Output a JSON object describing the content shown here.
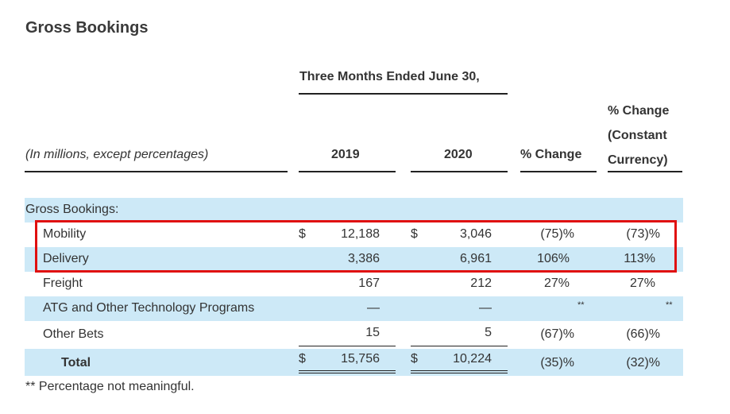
{
  "title": "Gross Bookings",
  "period_header": "Three Months Ended June 30,",
  "units_label": "(In millions, except percentages)",
  "columns": {
    "y2019": "2019",
    "y2020": "2020",
    "pct_change": "% Change",
    "cc_line1": "% Change",
    "cc_line2": "(Constant",
    "cc_line3": "Currency)"
  },
  "section_label": "Gross Bookings:",
  "currency_symbol": "$",
  "rows": [
    {
      "label": "Mobility",
      "v2019": "12,188",
      "v2020": "3,046",
      "pct": "(75)%",
      "pct_cc": "(73)%"
    },
    {
      "label": "Delivery",
      "v2019": "3,386",
      "v2020": "6,961",
      "pct": "106%",
      "pct_cc": "113%"
    },
    {
      "label": "Freight",
      "v2019": "167",
      "v2020": "212",
      "pct": "27%",
      "pct_cc": "27%"
    },
    {
      "label": "ATG and Other Technology Programs",
      "v2019": "—",
      "v2020": "—",
      "pct": "**",
      "pct_cc": "**"
    },
    {
      "label": "Other Bets",
      "v2019": "15",
      "v2020": "5",
      "pct": "(67)%",
      "pct_cc": "(66)%"
    }
  ],
  "total": {
    "label": "Total",
    "v2019": "15,756",
    "v2020": "10,224",
    "pct": "(35)%",
    "pct_cc": "(32)%"
  },
  "footnote": "** Percentage not meaningful.",
  "colors": {
    "band": "#cde9f7",
    "highlight_box": "#e01010"
  }
}
